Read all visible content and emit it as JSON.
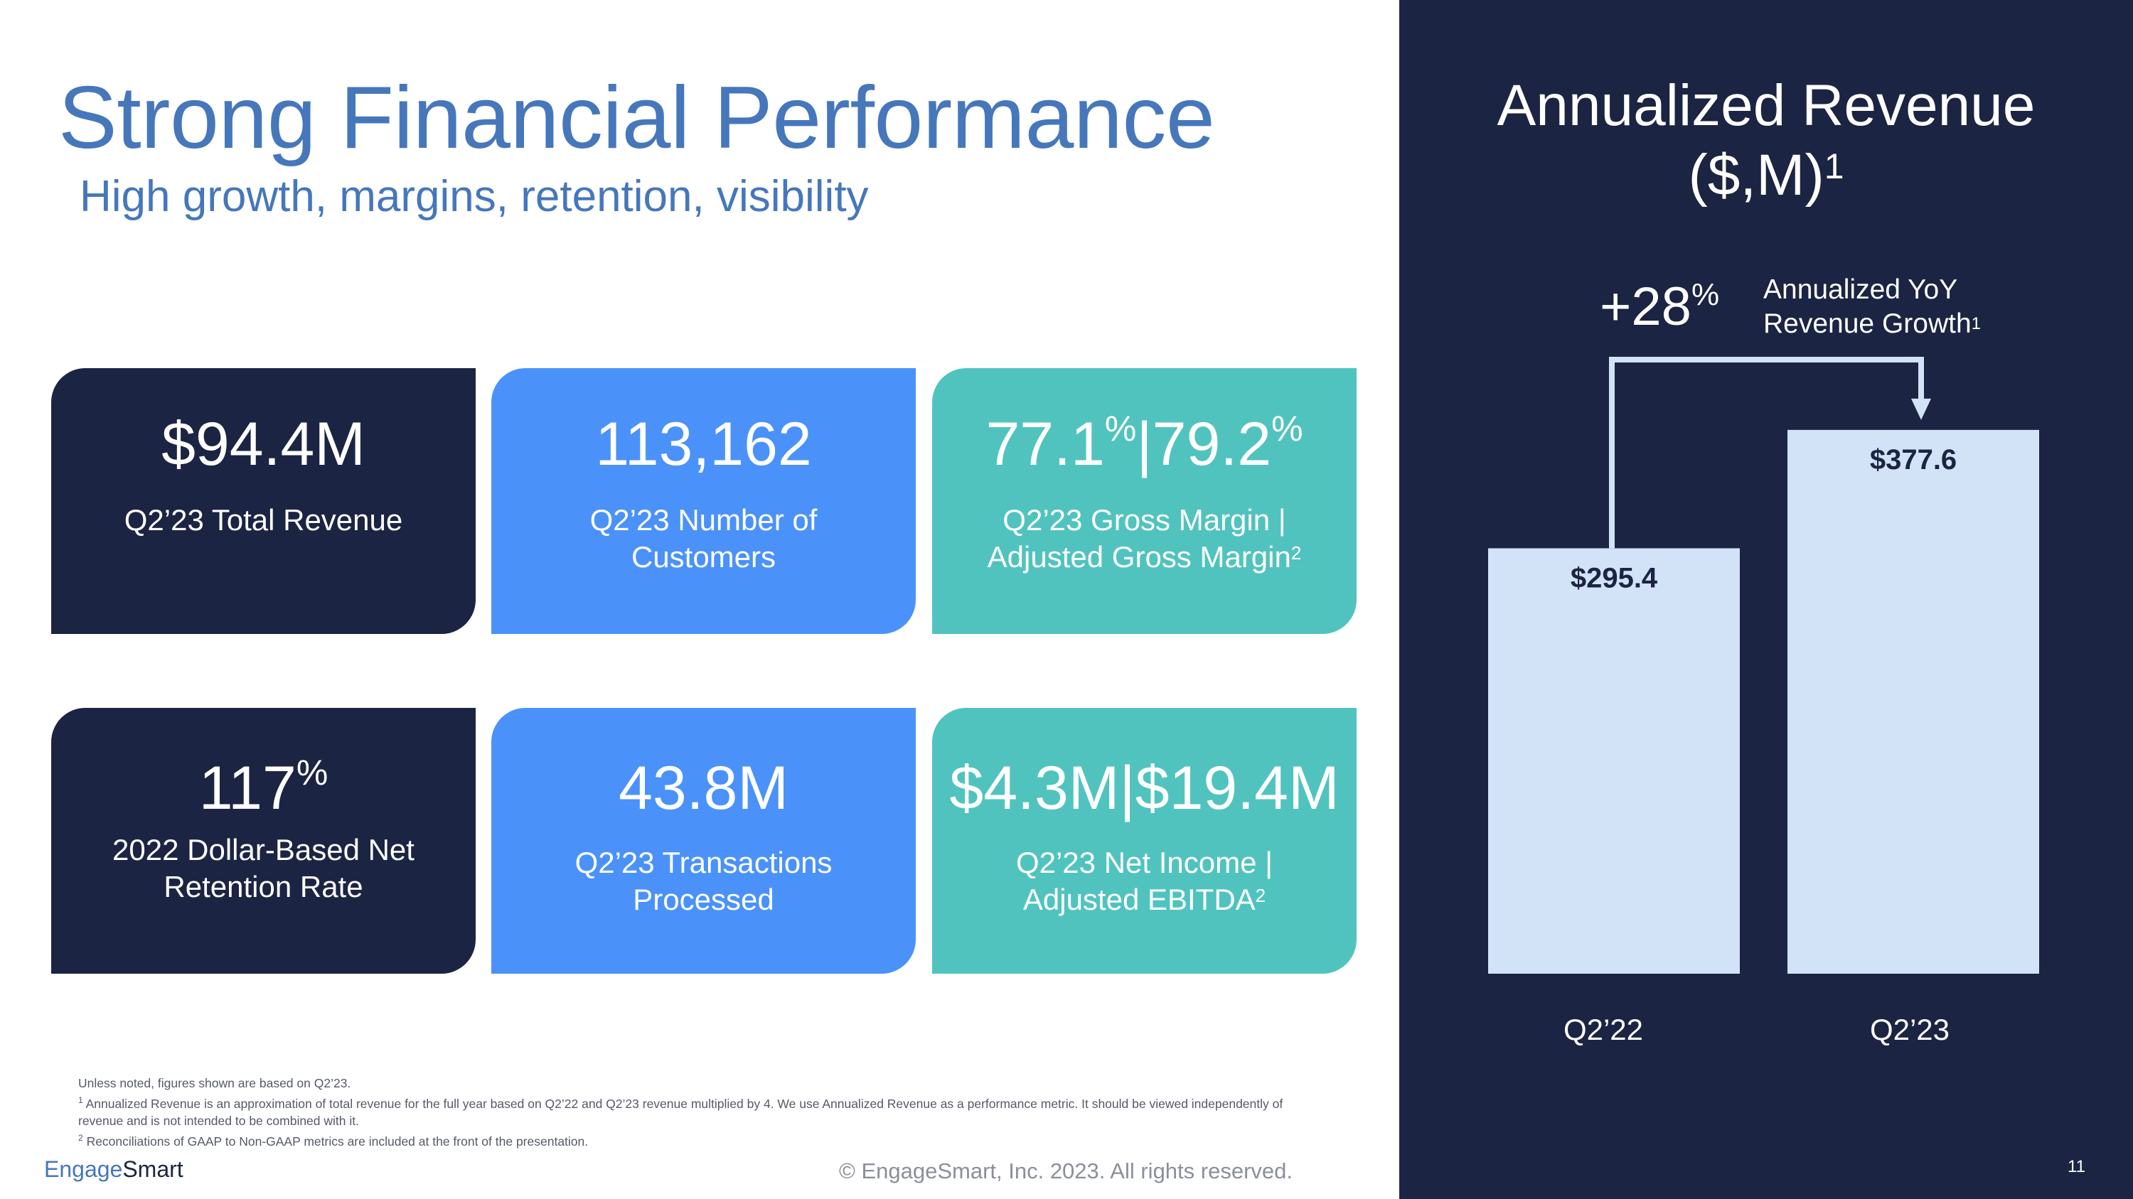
{
  "header": {
    "title": "Strong Financial Performance",
    "subtitle": "High growth, margins, retention, visibility"
  },
  "colors": {
    "navy": "#1B2442",
    "blue": "#4A92F9",
    "teal": "#51C3BF",
    "title_blue": "#4677BB",
    "bar": "#D2E3F7"
  },
  "cards": [
    {
      "value": "$94.4M",
      "label": "Q2’23 Total Revenue"
    },
    {
      "value": "113,162",
      "label": "Q2’23 Number of Customers"
    },
    {
      "value_a": "77.1",
      "value_b": "79.2",
      "pct": "%",
      "sep": "|",
      "label": "Q2’23 Gross Margin | Adjusted Gross Margin",
      "label_sup": "2"
    },
    {
      "value": "117",
      "pct": "%",
      "label": "2022 Dollar-Based Net Retention Rate"
    },
    {
      "value": "43.8M",
      "label": "Q2’23 Transactions Processed"
    },
    {
      "value": "$4.3M|$19.4M",
      "label": "Q2’23 Net Income | Adjusted EBITDA",
      "label_sup": "2"
    }
  ],
  "chart_data": {
    "type": "bar",
    "title": "Annualized Revenue ($,M)",
    "title_main": "Annualized Revenue",
    "title_unit": "($,M)",
    "title_sup": "1",
    "categories": [
      "Q2’22",
      "Q2’23"
    ],
    "values": [
      295.4,
      377.6
    ],
    "value_labels": [
      "$295.4",
      "$377.6"
    ],
    "ylim": [
      0,
      380
    ],
    "grid": false,
    "annotation": {
      "prefix": "+",
      "value": "28",
      "unit": "%",
      "label": "Annualized YoY Revenue Growth",
      "label_sup": "1"
    }
  },
  "footnotes": {
    "intro": "Unless noted, figures shown are based on Q2’23.",
    "n1_mark": "1",
    "n1": "Annualized Revenue is an approximation of total revenue for the full year based on Q2’22 and Q2’23 revenue multiplied by 4. We use Annualized Revenue as a performance metric. It should be viewed independently of revenue and is not intended to be combined with it.",
    "n2_mark": "2",
    "n2": "Reconciliations of GAAP to Non-GAAP metrics are included at the front of the presentation."
  },
  "footer": {
    "brand_a": "Engage",
    "brand_b": "Smart",
    "copyright": "© EngageSmart, Inc. 2023. All rights reserved.",
    "page": "11"
  }
}
